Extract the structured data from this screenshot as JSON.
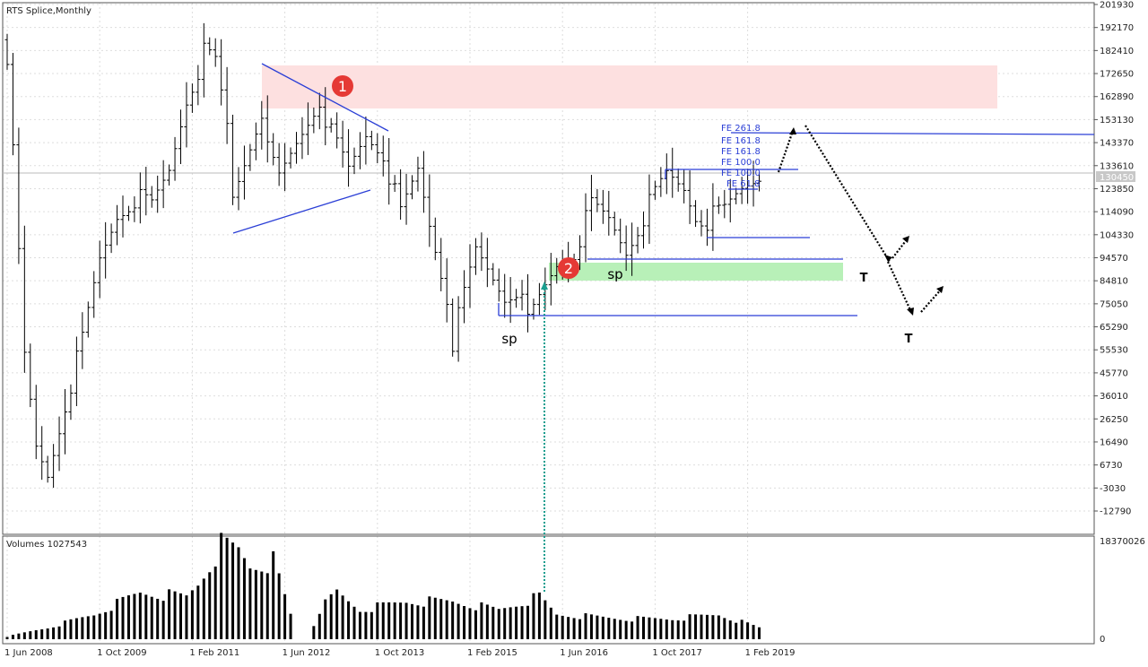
{
  "chart_data": {
    "type": "ohlc",
    "title": "RTS Splice,Monthly",
    "volume_label": "Volumes 1027543",
    "current_price_label": "130450",
    "price_ticks": [
      "201930",
      "192170",
      "182410",
      "172650",
      "162890",
      "153130",
      "143370",
      "133610",
      "123850",
      "114090",
      "104330",
      "94570",
      "84810",
      "75050",
      "65290",
      "55530",
      "45770",
      "36010",
      "26250",
      "16490",
      "6730",
      "-3030",
      "-12790"
    ],
    "price_range": [
      -12790,
      201930
    ],
    "volume_ticks": [
      "18370026",
      "0"
    ],
    "volume_range": [
      0,
      18370026
    ],
    "date_ticks": [
      "1 Jun 2008",
      "1 Oct 2009",
      "1 Feb 2011",
      "1 Jun 2012",
      "1 Oct 2013",
      "1 Feb 2015",
      "1 Jun 2016",
      "1 Oct 2017",
      "1 Feb 2019"
    ],
    "grid": true,
    "close_anchors": [
      [
        "2008-06",
        181000
      ],
      [
        "2008-09",
        51800
      ],
      [
        "2008-11",
        13800
      ],
      [
        "2009-01",
        2400
      ],
      [
        "2009-04",
        32800
      ],
      [
        "2009-07",
        59400
      ],
      [
        "2009-10",
        93600
      ],
      [
        "2010-01",
        112600
      ],
      [
        "2010-04",
        120200
      ],
      [
        "2010-07",
        116400
      ],
      [
        "2010-10",
        131600
      ],
      [
        "2011-01",
        162000
      ],
      [
        "2011-04",
        181000
      ],
      [
        "2011-06",
        177200
      ],
      [
        "2011-08",
        150600
      ],
      [
        "2011-09",
        120200
      ],
      [
        "2011-11",
        135400
      ],
      [
        "2012-02",
        158200
      ],
      [
        "2012-03",
        139200
      ],
      [
        "2012-05",
        127800
      ],
      [
        "2012-08",
        143000
      ],
      [
        "2012-12",
        162000
      ],
      [
        "2013-02",
        146800
      ],
      [
        "2013-05",
        131600
      ],
      [
        "2013-08",
        146800
      ],
      [
        "2013-11",
        139200
      ],
      [
        "2014-02",
        112600
      ],
      [
        "2014-05",
        131600
      ],
      [
        "2014-07",
        108800
      ],
      [
        "2014-10",
        78400
      ],
      [
        "2014-11",
        59400
      ],
      [
        "2015-01",
        78400
      ],
      [
        "2015-03",
        97400
      ],
      [
        "2015-05",
        89800
      ],
      [
        "2015-08",
        78400
      ],
      [
        "2015-10",
        82200
      ],
      [
        "2015-12",
        67000
      ],
      [
        "2016-03",
        82200
      ],
      [
        "2016-05",
        91700
      ],
      [
        "2016-08",
        97400
      ],
      [
        "2016-11",
        116400
      ],
      [
        "2017-02",
        110700
      ],
      [
        "2017-05",
        97400
      ],
      [
        "2017-08",
        112600
      ],
      [
        "2017-12",
        129700
      ],
      [
        "2018-03",
        124000
      ],
      [
        "2018-05",
        112600
      ],
      [
        "2018-07",
        110700
      ],
      [
        "2018-10",
        114500
      ],
      [
        "2019-01",
        124000
      ],
      [
        "2019-04",
        129700
      ]
    ],
    "volume_anchors": [
      [
        "2008-06",
        500000
      ],
      [
        "2009-01",
        2200000
      ],
      [
        "2009-09",
        4700000
      ],
      [
        "2010-05",
        8900000
      ],
      [
        "2011-01",
        8100000
      ],
      [
        "2011-03",
        10600000
      ],
      [
        "2011-07",
        17900000
      ],
      [
        "2011-10",
        17000000
      ],
      [
        "2011-12",
        14000000
      ],
      [
        "2012-04",
        14800000
      ],
      [
        "2012-07",
        4700000
      ],
      [
        "2012-08",
        0
      ],
      [
        "2012-10",
        0
      ],
      [
        "2012-12",
        5600000
      ],
      [
        "2013-03",
        8900000
      ],
      [
        "2013-07",
        5600000
      ],
      [
        "2014-03",
        7200000
      ],
      [
        "2014-11",
        7200000
      ],
      [
        "2015-07",
        5600000
      ],
      [
        "2016-02",
        8100000
      ],
      [
        "2016-05",
        4700000
      ],
      [
        "2017-05",
        3900000
      ],
      [
        "2018-01",
        3900000
      ],
      [
        "2018-09",
        4700000
      ],
      [
        "2019-04",
        2200000
      ]
    ],
    "annotations": {
      "circle_1": "1",
      "circle_2": "2",
      "sp_1": "sp",
      "sp_2": "sp",
      "t_1": "T",
      "t_2": "T",
      "fe_labels": [
        "FE 261.8",
        "FE 161.8",
        "FE 161.8",
        "FE 100.0",
        "FE 100.0",
        "FE 61.8"
      ]
    },
    "colors": {
      "bars": "#000000",
      "trendlines": "#2b3fd6",
      "resistance_zone": "#fde0e0",
      "support_zone": "#b8f0b8",
      "circle_marker": "#e53935",
      "vertical_marker": "#1a9e8f"
    }
  }
}
